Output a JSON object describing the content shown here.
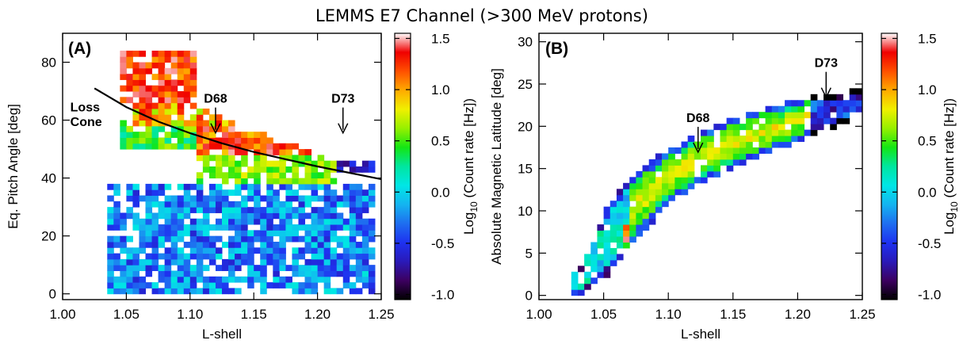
{
  "figure": {
    "title": "LEMMS E7 Channel (>300 MeV protons)"
  },
  "colors": {
    "colormap": [
      "#000000",
      "#3c0060",
      "#2a1ab8",
      "#1e32f0",
      "#1e6ef0",
      "#14b4f0",
      "#00e6e6",
      "#00e6a0",
      "#14e614",
      "#96f000",
      "#f0f000",
      "#ffaa00",
      "#ff5000",
      "#f00000",
      "#ffffff"
    ],
    "curve": "#000000"
  },
  "chart_data": [
    {
      "type": "heatmap",
      "panel_label": "(A)",
      "xlabel": "L-shell",
      "ylabel": "Eq. Pitch Angle [deg]",
      "xlim": [
        1.0,
        1.25
      ],
      "ylim": [
        -2,
        90
      ],
      "xticks": [
        "1.00",
        "1.05",
        "1.10",
        "1.15",
        "1.20",
        "1.25"
      ],
      "yticks": [
        "0",
        "20",
        "40",
        "60",
        "80"
      ],
      "colorbar": {
        "label_main": "Log",
        "label_sub": "10",
        "label_rest": " (Count rate [Hz])",
        "range": [
          -1.05,
          1.55
        ],
        "ticks": [
          "1.5",
          "1.0",
          "0.5",
          "0.0",
          "-0.5",
          "-1.0"
        ]
      },
      "annotations": [
        {
          "text": "D68",
          "x": 1.12,
          "y": 66,
          "arrow": true
        },
        {
          "text": "D73",
          "x": 1.22,
          "y": 66,
          "arrow": true
        },
        {
          "text": "Loss",
          "x": 1.006,
          "y": 63
        },
        {
          "text": "Cone",
          "x": 1.006,
          "y": 58
        }
      ],
      "loss_cone_curve": {
        "x": [
          1.025,
          1.05,
          1.075,
          1.1,
          1.125,
          1.15,
          1.175,
          1.2,
          1.225,
          1.25
        ],
        "y": [
          71,
          64.5,
          59.5,
          55.5,
          52,
          49,
          46.5,
          44,
          41.8,
          39.6
        ]
      },
      "regions": [
        {
          "x": [
            1.04,
            1.1
          ],
          "y": [
            66,
            84
          ],
          "v": [
            1.0,
            1.5
          ]
        },
        {
          "x": [
            1.05,
            1.14
          ],
          "y": [
            58,
            68
          ],
          "v": [
            0.6,
            1.4
          ]
        },
        {
          "x": [
            1.1,
            1.19
          ],
          "y": [
            48,
            60
          ],
          "v": [
            0.9,
            1.5
          ]
        },
        {
          "x": [
            1.1,
            1.21
          ],
          "y": [
            38,
            50
          ],
          "v": [
            0.4,
            0.8
          ]
        },
        {
          "x": [
            1.04,
            1.1
          ],
          "y": [
            50,
            60
          ],
          "v": [
            0.2,
            0.7
          ]
        },
        {
          "x": [
            1.03,
            1.24
          ],
          "y": [
            0,
            38
          ],
          "v": [
            -0.6,
            0.1
          ]
        },
        {
          "x": [
            1.2,
            1.24
          ],
          "y": [
            42,
            50
          ],
          "v": [
            -0.9,
            -0.4
          ]
        }
      ]
    },
    {
      "type": "heatmap",
      "panel_label": "(B)",
      "xlabel": "L-shell",
      "ylabel": "Absolute Magnetic Latitude [deg]",
      "xlim": [
        1.0,
        1.25
      ],
      "ylim": [
        -0.5,
        31
      ],
      "xticks": [
        "1.00",
        "1.05",
        "1.10",
        "1.15",
        "1.20",
        "1.25"
      ],
      "yticks": [
        "0",
        "5",
        "10",
        "15",
        "20",
        "25",
        "30"
      ],
      "colorbar": {
        "label_main": "Log",
        "label_sub": "10",
        "label_rest": " (Count rate [Hz])",
        "range": [
          -1.05,
          1.55
        ],
        "ticks": [
          "1.5",
          "1.0",
          "0.5",
          "0.0",
          "-0.5",
          "-1.0"
        ]
      },
      "annotations": [
        {
          "text": "D68",
          "x": 1.123,
          "y": 20.5,
          "arrow": true
        },
        {
          "text": "D73",
          "x": 1.222,
          "y": 27,
          "arrow": true
        }
      ],
      "band": {
        "x": [
          1.03,
          1.05,
          1.07,
          1.1,
          1.13,
          1.16,
          1.19,
          1.21,
          1.25
        ],
        "y_center": [
          1.5,
          6,
          10,
          14,
          16.5,
          18.5,
          20,
          21,
          22.5
        ],
        "half_width": [
          1.5,
          4,
          4,
          3.2,
          3.0,
          2.8,
          2.5,
          2.2,
          1.6
        ]
      }
    }
  ]
}
